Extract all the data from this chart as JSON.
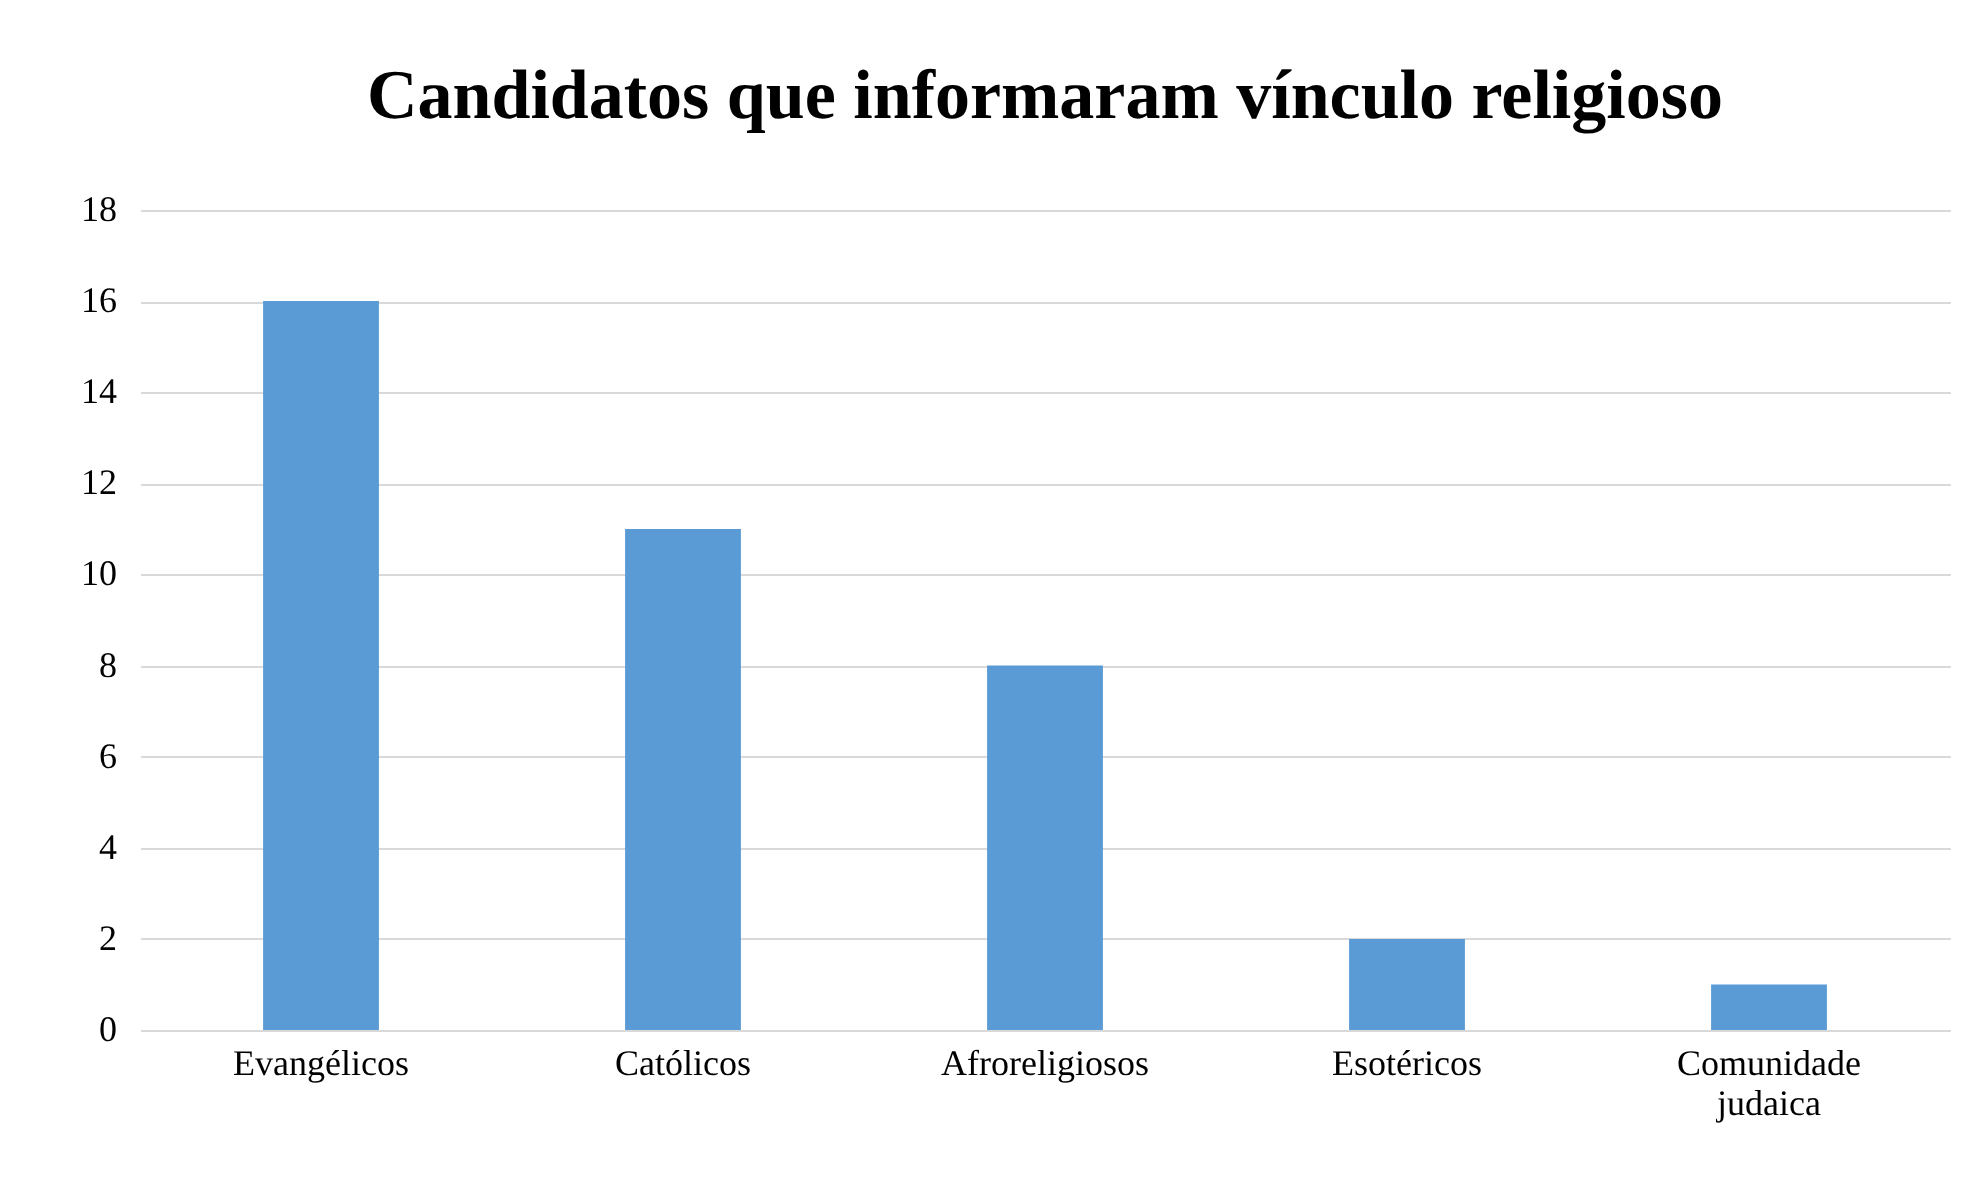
{
  "chart_data": {
    "type": "bar",
    "title": "Candidatos que informaram vínculo religioso",
    "categories": [
      "Evangélicos",
      "Católicos",
      "Afroreligiosos",
      "Esotéricos",
      "Comunidade judaica"
    ],
    "values": [
      16,
      11,
      8,
      2,
      1
    ],
    "color": "#5b9bd5",
    "ylim": [
      0,
      18
    ],
    "yticks": [
      0,
      2,
      4,
      6,
      8,
      10,
      12,
      14,
      16,
      18
    ],
    "grid": "y"
  }
}
